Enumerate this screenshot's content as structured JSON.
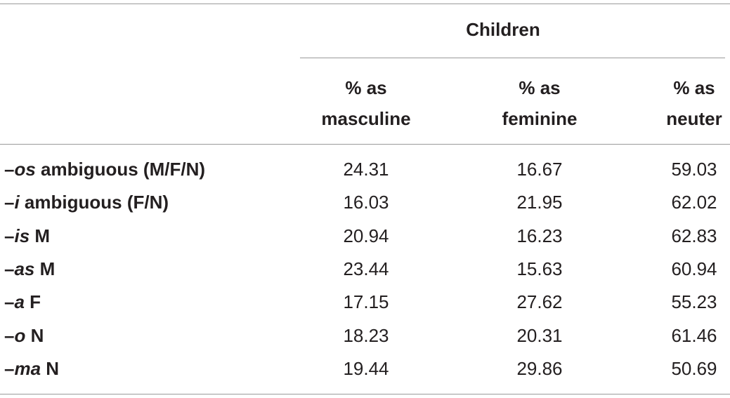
{
  "table": {
    "group_header": "Children",
    "columns": [
      {
        "line1": "% as",
        "line2": "masculine"
      },
      {
        "line1": "% as",
        "line2": "feminine"
      },
      {
        "line1": "% as",
        "line2": "neuter"
      }
    ],
    "rows": [
      {
        "prefix": "–",
        "ending": "os",
        "rest": " ambiguous (M/F/N)",
        "values": [
          "24.31",
          "16.67",
          "59.03"
        ]
      },
      {
        "prefix": "–",
        "ending": "i",
        "rest": " ambiguous (F/N)",
        "values": [
          "16.03",
          "21.95",
          "62.02"
        ]
      },
      {
        "prefix": "–",
        "ending": "is",
        "rest": " M",
        "values": [
          "20.94",
          "16.23",
          "62.83"
        ]
      },
      {
        "prefix": "–",
        "ending": "as",
        "rest": " M",
        "values": [
          "23.44",
          "15.63",
          "60.94"
        ]
      },
      {
        "prefix": "–",
        "ending": "a",
        "rest": " F",
        "values": [
          "17.15",
          "27.62",
          "55.23"
        ]
      },
      {
        "prefix": "–",
        "ending": "o",
        "rest": " N",
        "values": [
          "18.23",
          "20.31",
          "61.46"
        ]
      },
      {
        "prefix": "–",
        "ending": "ma",
        "rest": " N",
        "values": [
          "19.44",
          "29.86",
          "50.69"
        ]
      }
    ]
  }
}
